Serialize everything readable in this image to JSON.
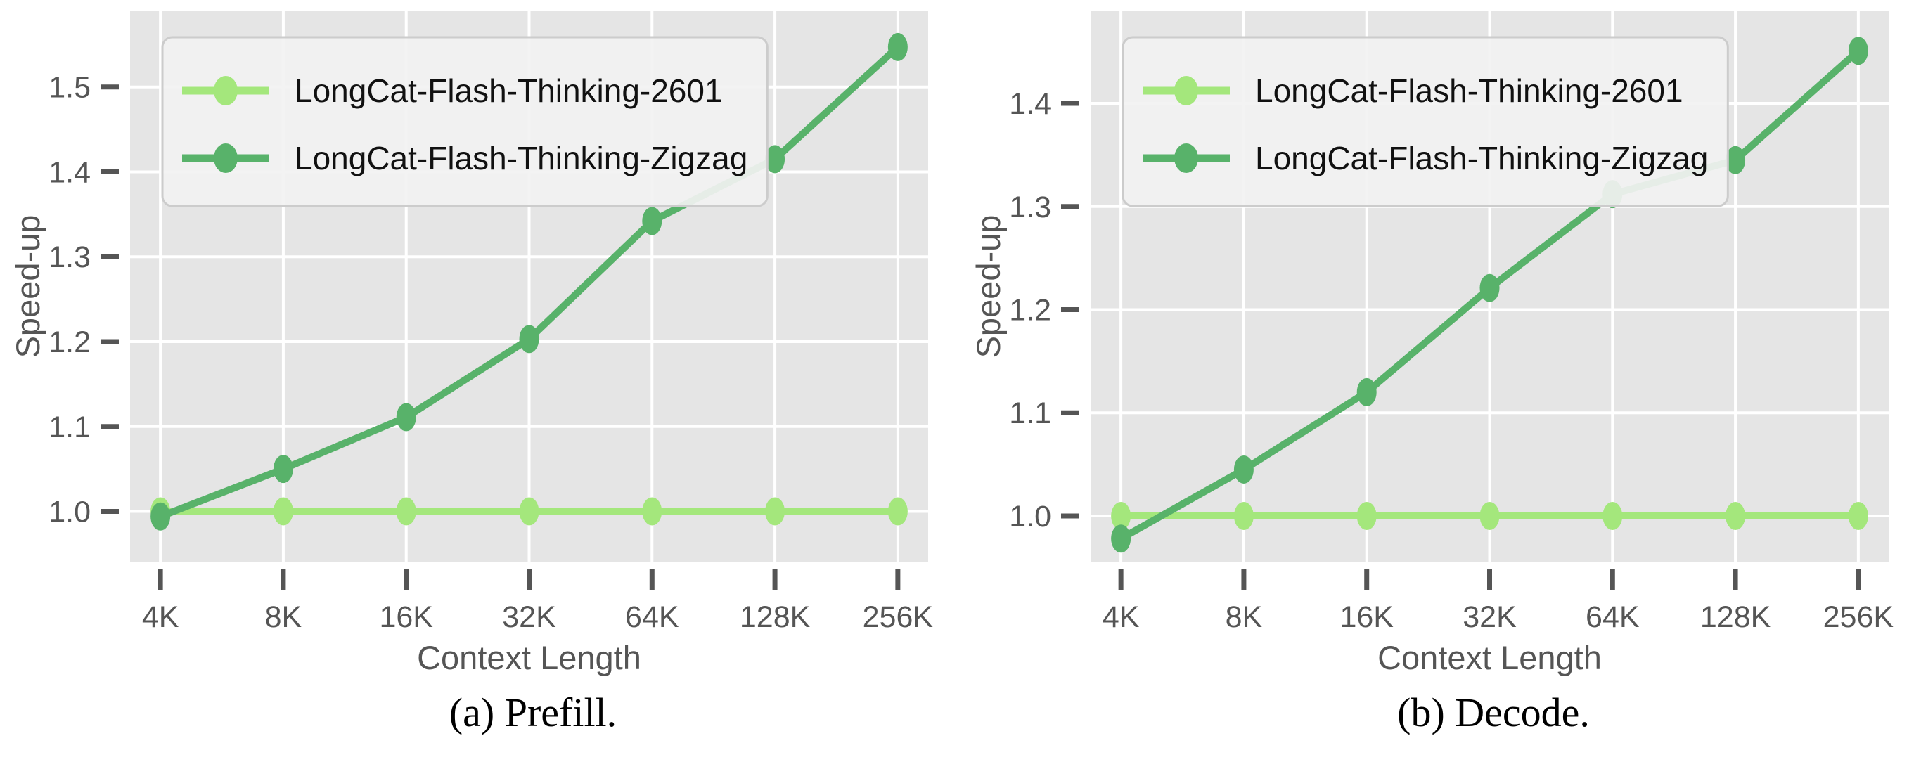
{
  "figures": [
    {
      "caption": "(a) Prefill."
    },
    {
      "caption": "(b) Decode."
    }
  ],
  "style": {
    "page_background": "#ffffff",
    "plot_background": "#e5e5e5",
    "grid_color": "#ffffff",
    "tick_color": "#555555",
    "axis_label_color": "#555555",
    "legend_background": "#f2f2f2",
    "legend_border": "#cccccc",
    "legend_text_color": "#111111",
    "series_light_green": "#a4e77c",
    "series_dark_green": "#58b26a"
  },
  "chart_data": [
    {
      "type": "line",
      "title": "",
      "caption": "(a) Prefill.",
      "xlabel": "Context Length",
      "ylabel": "Speed-up",
      "categories": [
        "4K",
        "8K",
        "16K",
        "32K",
        "64K",
        "128K",
        "256K"
      ],
      "series": [
        {
          "name": "LongCat-Flash-Thinking-2601",
          "color": "#a4e77c",
          "values": [
            1.0,
            1.0,
            1.0,
            1.0,
            1.0,
            1.0,
            1.0
          ]
        },
        {
          "name": "LongCat-Flash-Thinking-Zigzag",
          "color": "#58b26a",
          "values": [
            0.994,
            1.05,
            1.111,
            1.203,
            1.342,
            1.415,
            1.547
          ]
        }
      ],
      "yticks": [
        1.0,
        1.1,
        1.2,
        1.3,
        1.4,
        1.5
      ],
      "ylim": [
        0.94,
        1.59
      ],
      "grid": true,
      "legend_position": "upper left"
    },
    {
      "type": "line",
      "title": "",
      "caption": "(b) Decode.",
      "xlabel": "Context Length",
      "ylabel": "Speed-up",
      "categories": [
        "4K",
        "8K",
        "16K",
        "32K",
        "64K",
        "128K",
        "256K"
      ],
      "series": [
        {
          "name": "LongCat-Flash-Thinking-2601",
          "color": "#a4e77c",
          "values": [
            1.0,
            1.0,
            1.0,
            1.0,
            1.0,
            1.0,
            1.0
          ]
        },
        {
          "name": "LongCat-Flash-Thinking-Zigzag",
          "color": "#58b26a",
          "values": [
            0.978,
            1.045,
            1.12,
            1.221,
            1.312,
            1.345,
            1.451
          ]
        }
      ],
      "yticks": [
        1.0,
        1.1,
        1.2,
        1.3,
        1.4
      ],
      "ylim": [
        0.955,
        1.49
      ],
      "grid": true,
      "legend_position": "upper left"
    }
  ]
}
